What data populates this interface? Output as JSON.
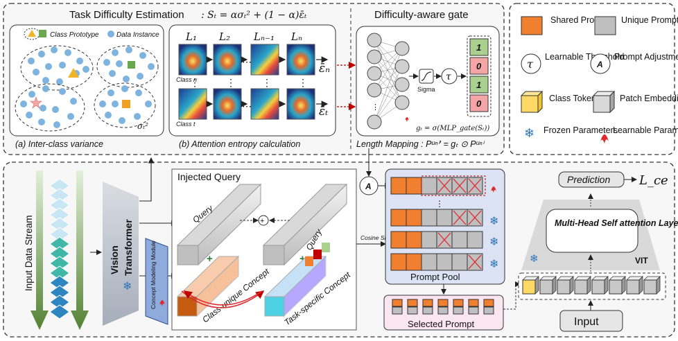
{
  "top": {
    "tde_title": "Task Difficulty Estimation",
    "tde_formula": ": Sₜ = ασₜ² + (1 − α)ε̄ₜ",
    "var_legend_proto": "Class Prototype",
    "var_legend_data": "Data Instance",
    "var_sigma": "σₜ²",
    "var_caption": "(a) Inter-class variance",
    "ent_caption": "(b) Attention entropy calculation",
    "ent_L1": "L₁",
    "ent_L2": "L₂",
    "ent_Ln1": "Lₙ₋₁",
    "ent_Ln": "Lₙ",
    "ent_dots": "⋯",
    "ent_vdots": "⋮",
    "ent_class_n": "Class n",
    "ent_class_t": "Class t",
    "ent_eps_n": "ε̄ₙ",
    "ent_eps_t": "ε̄ₜ",
    "gate_title": "Difficulty-aware gate",
    "gate_sigma": "Sigma",
    "gate_tau": "τ",
    "gate_formula": "gₜ = σ(MLP_gate(Sₜ))",
    "gate_bits": [
      "1",
      "0",
      "1",
      "0"
    ],
    "length_mapping": "Length Mapping : Pᵘⁿⁱ′ = gₜ ⊙ Pᵘⁿⁱ"
  },
  "legend": {
    "shared": "Shared Prompt",
    "unique": "Unique Prompt",
    "threshold": "Learnable Threshold",
    "threshold_sym": "τ",
    "adjust": "Prompt Adjustment",
    "adjust_sym": "A",
    "class_token": "Class Token",
    "patch": "Patch Embedding",
    "frozen": "Frozen Parameters",
    "learnable": "Learnable Parameters"
  },
  "bottom": {
    "input_stream": "Input Data Stream",
    "vision": "Vision",
    "transformer": "Transformer",
    "cmm": "Concept Modeling Module",
    "injected_query": "Injected Query",
    "query": "Query",
    "query2": "Query",
    "class_unique": "Class-unique Concept",
    "task_specific": "Task-specific Concept",
    "cosine": "Cosine Similarity",
    "adjust_sym": "A",
    "prompt_pool": "Prompt Pool",
    "pool_vdots": "⋮",
    "selected_prompt": "Selected Prompt",
    "prediction": "Prediction",
    "loss": "L_ce",
    "mhsa": "Multi-Head Self attention Layers",
    "vit": "VIT",
    "input": "Input"
  },
  "colors": {
    "shared": "#f07f2f",
    "unique": "#bfbfbf",
    "class_token": "#ffd966",
    "pool_bg": "#dbe3f4",
    "bit_one": "#a9d08e",
    "bit_zero": "#f4a6a6",
    "red": "#e0282d",
    "stream_green": "#6aa84f",
    "stream_blue": "#3d85c6"
  }
}
